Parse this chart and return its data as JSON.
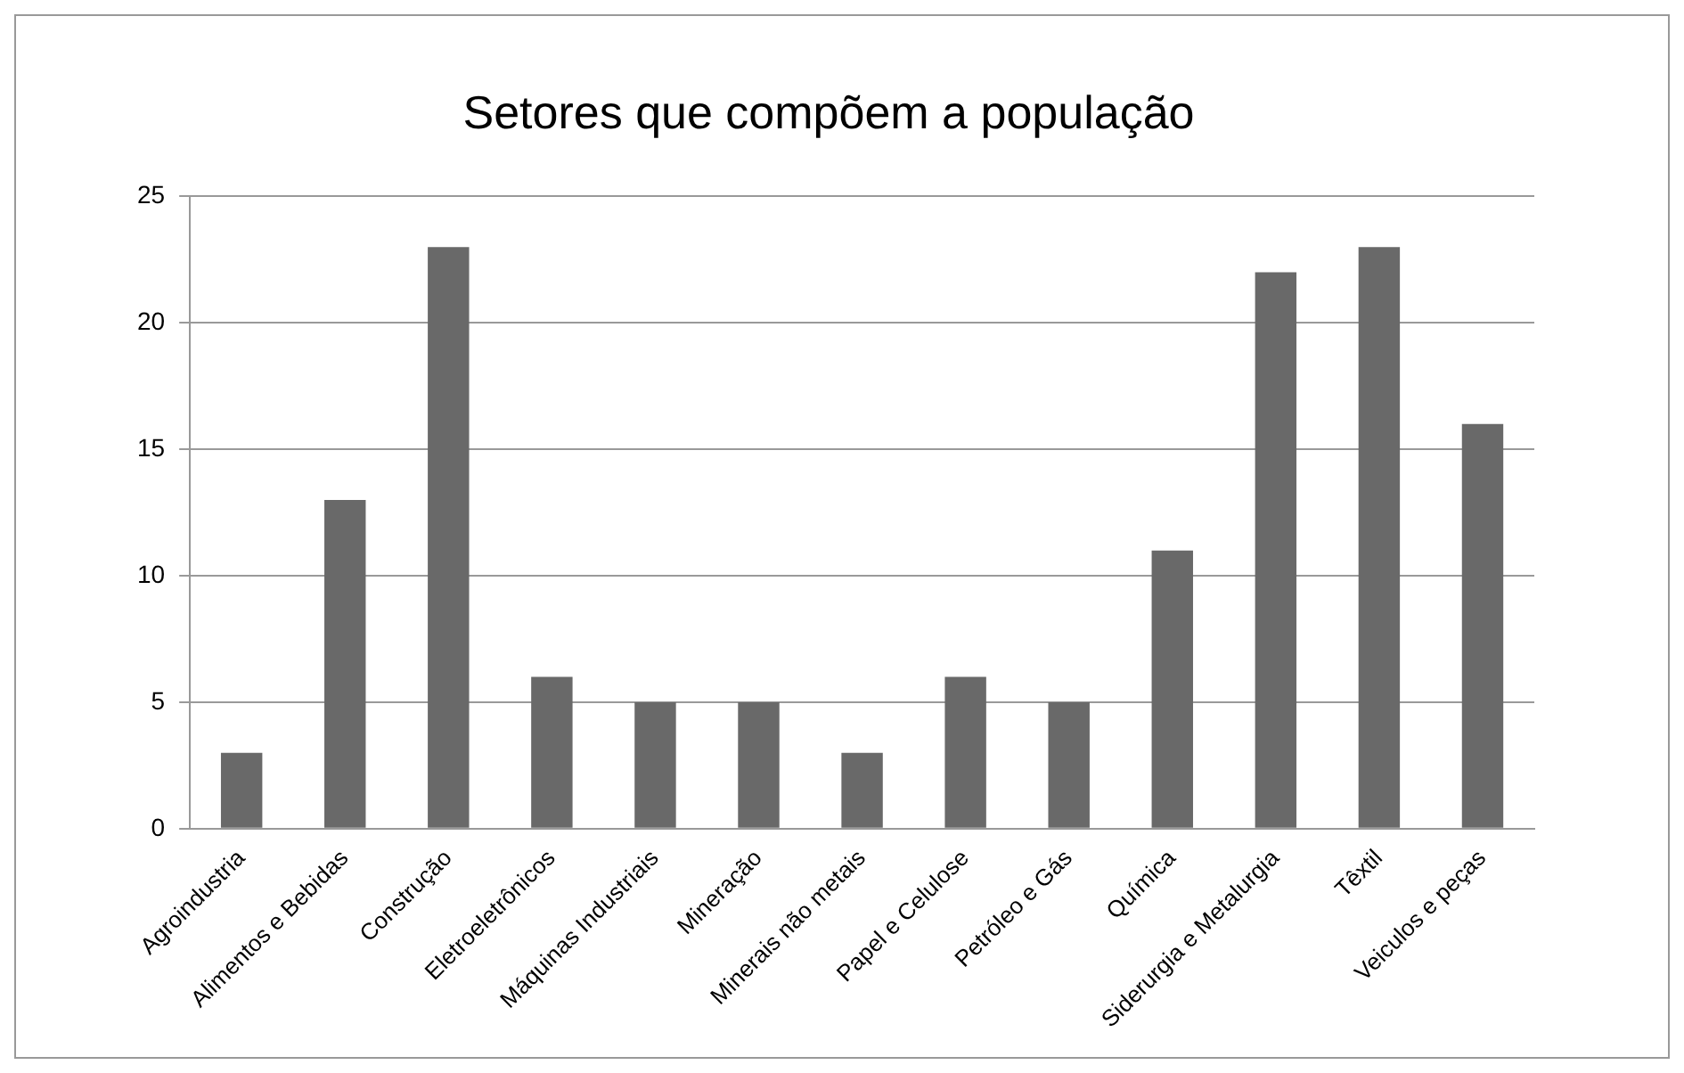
{
  "chart_data": {
    "type": "bar",
    "title": "Setores que compõem a população",
    "categories": [
      "Agroindustria",
      "Alimentos e Bebidas",
      "Construção",
      "Eletroeletrônicos",
      "Máquinas Industriais",
      "Mineração",
      "Minerais não metais",
      "Papel e Celulose",
      "Petróleo e Gás",
      "Química",
      "Siderurgia e Metalurgia",
      "Têxtil",
      "Veiculos e peças"
    ],
    "values": [
      3,
      13,
      23,
      6,
      5,
      5,
      3,
      6,
      5,
      11,
      22,
      23,
      16
    ],
    "color": "#696969",
    "ylim": [
      0,
      25
    ],
    "yticks": [
      0,
      5,
      10,
      15,
      20,
      25
    ],
    "grid": "y",
    "legend": false
  }
}
